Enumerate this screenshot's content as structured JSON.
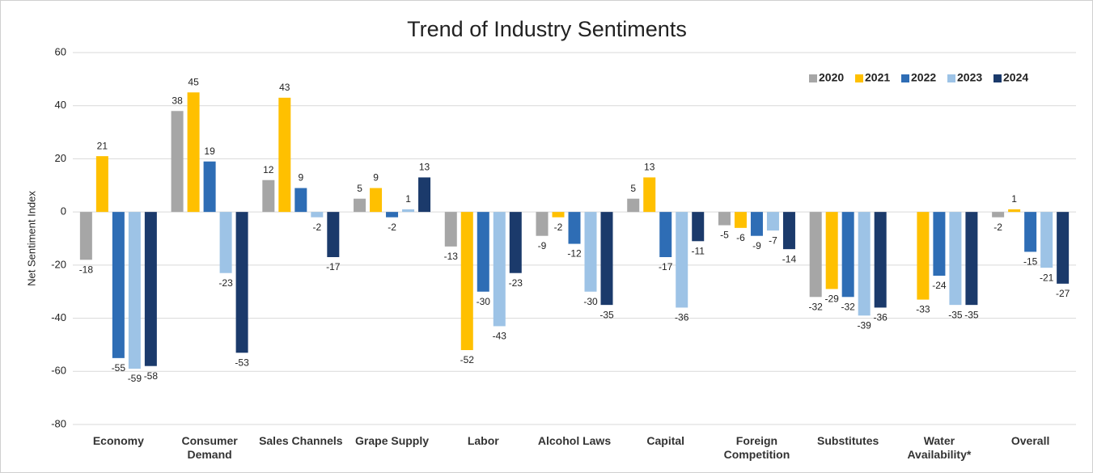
{
  "chart_data": {
    "type": "bar",
    "title": "Trend of Industry Sentiments",
    "y_label": "Net Sentiment Index",
    "categories": [
      "Economy",
      "Consumer Demand",
      "Sales Channels",
      "Grape Supply",
      "Labor",
      "Alcohol Laws",
      "Capital",
      "Foreign Competition",
      "Substitutes",
      "Water Availability*",
      "Overall"
    ],
    "series": [
      {
        "name": "2020",
        "color": "#a6a6a6",
        "values": [
          -18,
          38,
          12,
          5,
          -13,
          -9,
          5,
          -5,
          -32,
          null,
          -2
        ]
      },
      {
        "name": "2021",
        "color": "#ffc000",
        "values": [
          21,
          45,
          43,
          9,
          -52,
          -2,
          13,
          -6,
          -29,
          -33,
          1
        ]
      },
      {
        "name": "2022",
        "color": "#2e6db5",
        "values": [
          -55,
          19,
          9,
          -2,
          -30,
          -12,
          -17,
          -9,
          -32,
          -24,
          -15
        ]
      },
      {
        "name": "2023",
        "color": "#9dc3e6",
        "values": [
          -59,
          -23,
          -2,
          1,
          -43,
          -30,
          -36,
          -7,
          -39,
          -35,
          -21
        ]
      },
      {
        "name": "2024",
        "color": "#1b3a6b",
        "values": [
          -58,
          -53,
          -17,
          13,
          -23,
          -35,
          -11,
          -14,
          -36,
          -35,
          -27
        ]
      }
    ],
    "ylim": [
      -80,
      60
    ],
    "yticks": [
      -80,
      -60,
      -40,
      -20,
      0,
      20,
      40,
      60
    ],
    "grid": true,
    "legend": "top-right"
  }
}
